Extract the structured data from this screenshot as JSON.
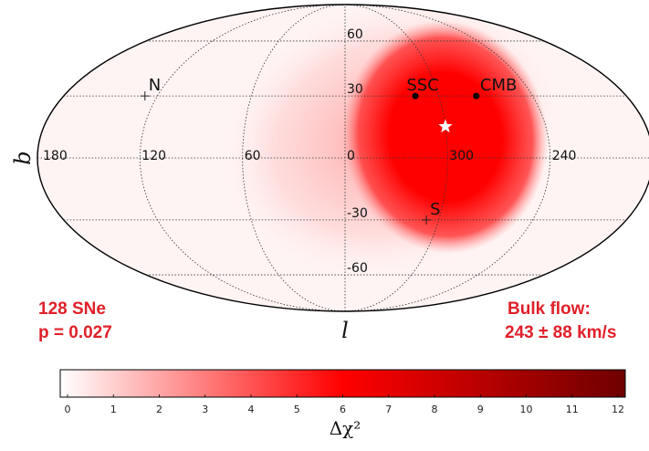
{
  "chart_data": {
    "type": "heatmap",
    "projection": "mollweide",
    "xlabel": "l",
    "ylabel": "b",
    "lon_ticks": [
      {
        "value": 180,
        "label": "180"
      },
      {
        "value": 120,
        "label": "120"
      },
      {
        "value": 60,
        "label": "60"
      },
      {
        "value": 0,
        "label": "0"
      },
      {
        "value": 300,
        "label": "300"
      },
      {
        "value": 240,
        "label": "240"
      }
    ],
    "lat_ticks": [
      {
        "value": 60,
        "label": "60"
      },
      {
        "value": 30,
        "label": "30"
      },
      {
        "value": -30,
        "label": "-30"
      },
      {
        "value": -60,
        "label": "-60"
      }
    ],
    "grid": true,
    "markers": [
      {
        "id": "N",
        "label": "N",
        "l": 128,
        "b": 30,
        "symbol": "plus"
      },
      {
        "id": "S",
        "label": "S",
        "l": 308,
        "b": -30,
        "symbol": "plus"
      },
      {
        "id": "SSC",
        "label": "SSC",
        "l": 315,
        "b": 30,
        "symbol": "dot"
      },
      {
        "id": "CMB",
        "label": "CMB",
        "l": 276,
        "b": 30,
        "symbol": "dot"
      },
      {
        "id": "best",
        "label": "",
        "l": 300,
        "b": 15,
        "symbol": "star"
      }
    ],
    "peak": {
      "l": 300,
      "b": 15,
      "max_delta_chi2": 7
    },
    "colorbar": {
      "label": "Δχ²",
      "range": [
        0,
        12
      ],
      "ticks": [
        "0",
        "1",
        "2",
        "3",
        "4",
        "5",
        "6",
        "7",
        "8",
        "9",
        "10",
        "11",
        "12"
      ],
      "colors": [
        "#ffffff",
        "#ff0000",
        "#6e0000"
      ]
    },
    "annotations": {
      "left_line1": "128 SNe",
      "left_line2": "p = 0.027",
      "right_line1": "Bulk flow:",
      "right_line2": "243 ± 88 km/s"
    }
  }
}
